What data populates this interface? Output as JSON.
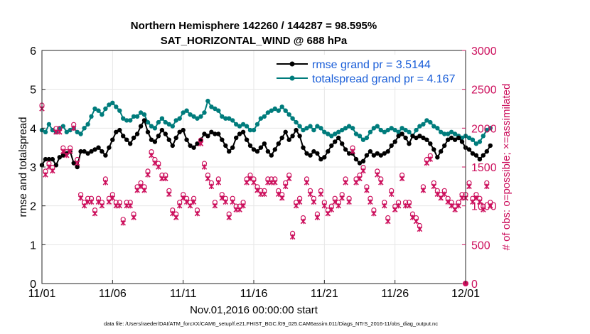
{
  "chart_data": {
    "type": "line",
    "title_line1": "Northern Hemisphere 142260 / 144287 = 98.595%",
    "title_line2": "SAT_HORIZONTAL_WIND @ 688 hPa",
    "xlabel": "Nov.01,2016 00:00:00 start",
    "ylabel_left": "rmse and totalspread",
    "ylabel_right": "# of obs: o=possible; ×=assimilated",
    "footnote": "data file: /Users/raeder/DAI/ATM_forcXX/CAM6_setup/f.e21.FHIST_BGC.f09_025.CAM6assim.011/Diags_NTrS_2016-11/obs_diag_output.nc",
    "xlim": [
      0,
      30
    ],
    "ylim_left": [
      0,
      6
    ],
    "ylim_right": [
      0,
      3000
    ],
    "x_ticks": [
      0,
      5,
      10,
      15,
      20,
      25,
      30
    ],
    "x_tick_labels": [
      "11/01",
      "11/06",
      "11/11",
      "11/16",
      "11/21",
      "11/26",
      "12/01"
    ],
    "y_left_ticks": [
      "0",
      "1",
      "2",
      "3",
      "4",
      "5",
      "6"
    ],
    "y_right_ticks": [
      "0",
      "500",
      "1000",
      "1500",
      "2000",
      "2500",
      "3000"
    ],
    "grid": true,
    "legend": [
      "rmse grand pr = 3.5144",
      "totalspread grand pr = 4.167"
    ],
    "x_step_days": 0.25,
    "series": [
      {
        "name": "rmse",
        "color": "#000000",
        "axis": "left",
        "values": [
          3.05,
          3.2,
          3.2,
          3.2,
          3.05,
          3.25,
          3.3,
          3.35,
          3.4,
          3.1,
          3.0,
          3.4,
          3.4,
          3.35,
          3.4,
          3.45,
          3.5,
          3.4,
          3.3,
          3.5,
          3.7,
          3.9,
          3.95,
          3.8,
          3.7,
          3.6,
          3.75,
          3.85,
          4.05,
          4.2,
          3.9,
          3.7,
          3.65,
          3.8,
          3.95,
          3.85,
          3.7,
          3.55,
          3.75,
          3.9,
          3.95,
          3.7,
          3.55,
          3.5,
          3.6,
          3.7,
          3.85,
          3.8,
          3.9,
          3.85,
          3.85,
          3.7,
          3.55,
          3.4,
          3.5,
          3.75,
          3.85,
          3.9,
          3.7,
          3.55,
          3.45,
          3.4,
          3.5,
          3.6,
          3.4,
          3.3,
          3.45,
          3.6,
          3.75,
          3.9,
          3.7,
          3.8,
          3.95,
          3.8,
          3.5,
          3.35,
          3.3,
          3.4,
          3.35,
          3.2,
          3.25,
          3.4,
          3.55,
          3.65,
          3.75,
          3.6,
          3.45,
          3.35,
          3.35,
          3.2,
          3.1,
          3.15,
          3.3,
          3.4,
          3.3,
          3.35,
          3.3,
          3.35,
          3.4,
          3.55,
          3.65,
          3.8,
          3.85,
          3.75,
          3.6,
          3.8,
          3.75,
          3.8,
          3.75,
          3.7,
          3.6,
          3.45,
          3.25,
          3.4,
          3.55,
          3.7,
          3.75,
          3.7,
          3.75,
          3.65,
          3.5,
          3.45,
          3.35,
          3.3,
          3.2,
          3.3,
          3.4,
          3.55
        ]
      },
      {
        "name": "totalspread",
        "color": "#007c7c",
        "axis": "left",
        "values": [
          3.95,
          3.9,
          4.1,
          3.95,
          3.9,
          4.0,
          4.05,
          3.9,
          3.95,
          4.0,
          3.9,
          3.85,
          4.0,
          4.1,
          4.3,
          4.5,
          4.45,
          4.35,
          4.5,
          4.6,
          4.65,
          4.55,
          4.45,
          4.25,
          4.2,
          4.2,
          4.3,
          4.3,
          4.4,
          4.35,
          4.15,
          4.05,
          4.0,
          4.15,
          4.25,
          4.15,
          4.1,
          4.05,
          4.2,
          4.25,
          4.4,
          4.45,
          4.35,
          4.3,
          4.25,
          4.3,
          4.4,
          4.7,
          4.55,
          4.5,
          4.45,
          4.3,
          4.25,
          4.25,
          4.2,
          4.1,
          4.05,
          4.1,
          4.05,
          3.95,
          3.95,
          4.1,
          4.25,
          4.3,
          4.4,
          4.45,
          4.5,
          4.45,
          4.55,
          4.45,
          4.35,
          4.25,
          4.15,
          4.05,
          3.95,
          4.0,
          4.05,
          3.95,
          4.05,
          4.0,
          3.9,
          3.85,
          3.8,
          3.85,
          3.9,
          3.95,
          4.0,
          4.05,
          4.0,
          3.85,
          3.8,
          3.7,
          3.75,
          3.9,
          4.0,
          4.05,
          3.95,
          3.9,
          3.95,
          4.0,
          3.95,
          3.9,
          4.0,
          3.95,
          3.9,
          3.8,
          3.95,
          4.05,
          4.1,
          4.2,
          4.15,
          4.05,
          4.0,
          3.9,
          3.85,
          3.85,
          3.9,
          3.85,
          3.8,
          3.75,
          3.8,
          3.75,
          3.7,
          3.6,
          3.65,
          3.8,
          3.95,
          4.0
        ]
      }
    ],
    "obs_counts": {
      "axis": "right",
      "color": "#cc0f5c",
      "values": [
        2250,
        1400,
        1500,
        1450,
        1950,
        1950,
        1700,
        1650,
        1700,
        2000,
        1550,
        1100,
        1000,
        1050,
        1050,
        900,
        1050,
        1000,
        1300,
        1050,
        1100,
        1000,
        1000,
        780,
        1000,
        1000,
        850,
        1200,
        1250,
        1200,
        1400,
        1650,
        1550,
        1500,
        1350,
        1350,
        1150,
        900,
        850,
        1000,
        1100,
        1050,
        1000,
        1050,
        900,
        1800,
        1500,
        1350,
        1250,
        1000,
        1300,
        1100,
        1050,
        850,
        1050,
        950,
        950,
        1000,
        1300,
        1350,
        1300,
        1200,
        1150,
        1150,
        1300,
        1300,
        1300,
        1150,
        1100,
        1250,
        1350,
        600,
        1000,
        1050,
        800,
        1300,
        1150,
        1050,
        850,
        1150,
        1000,
        900,
        950,
        1050,
        1000,
        1100,
        1300,
        1050,
        1700,
        1300,
        1350,
        1450,
        1200,
        1050,
        900,
        1400,
        1300,
        1000,
        800,
        1150,
        950,
        1000,
        1350,
        1000,
        1000,
        850,
        800,
        700,
        1200,
        1550,
        1600,
        1250,
        1150,
        1100,
        1150,
        1050,
        1000,
        950,
        1000,
        1100,
        1100,
        1250,
        1050,
        1100,
        1050,
        950,
        1250,
        1000
      ],
      "last_point": 0,
      "notes": "Markers drawn from the final recreated values list"
    }
  }
}
